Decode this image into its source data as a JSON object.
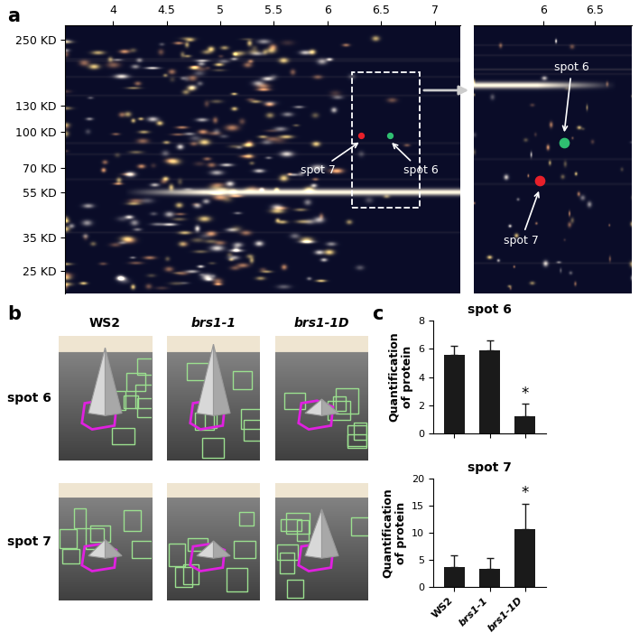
{
  "figure": {
    "panel_labels": [
      "a",
      "b",
      "c"
    ],
    "gel": {
      "ph_ticks": [
        4,
        4.5,
        5,
        5.5,
        6,
        6.5,
        7
      ],
      "ph_range": [
        3.55,
        7.24
      ],
      "mw_ticks": [
        {
          "value": 250,
          "label": "250 KD"
        },
        {
          "value": 130,
          "label": "130 KD"
        },
        {
          "value": 100,
          "label": "100 KD"
        },
        {
          "value": 70,
          "label": "70 KD"
        },
        {
          "value": 55,
          "label": "55 KD"
        },
        {
          "value": 35,
          "label": "35 KD"
        },
        {
          "value": 25,
          "label": "25 KD"
        }
      ],
      "mw_range": [
        20,
        290
      ],
      "zoom_ph_ticks": [
        6,
        6.5
      ],
      "zoom_ph_range": [
        5.32,
        6.86
      ],
      "spots": [
        {
          "label": "spot 7",
          "color": "#e8202a"
        },
        {
          "label": "spot 6",
          "color": "#2fbf71"
        }
      ]
    },
    "surface": {
      "genotypes": [
        "WS2",
        "brs1-1",
        "brs1-1D"
      ],
      "rows": [
        "spot 6",
        "spot 7"
      ]
    }
  },
  "chart_data": [
    {
      "type": "bar",
      "title": "spot 6",
      "ylabel": "Quantification\nof protein",
      "categories": [
        "WS2",
        "brs1-1",
        "brs1-1D"
      ],
      "values": [
        5.6,
        5.9,
        1.2
      ],
      "errors": [
        0.6,
        0.7,
        0.9
      ],
      "color": "#1a1a1a",
      "ylim": [
        0,
        8
      ],
      "yticks": [
        0,
        2,
        4,
        6,
        8
      ],
      "tick_labels": "y",
      "annotations": [
        {
          "category": "brs1-1D",
          "text": "*"
        }
      ]
    },
    {
      "type": "bar",
      "title": "spot 7",
      "ylabel": "Quantification\nof protein",
      "categories": [
        "WS2",
        "brs1-1",
        "brs1-1D"
      ],
      "values": [
        3.7,
        3.4,
        10.6
      ],
      "errors": [
        2.2,
        1.9,
        4.8
      ],
      "color": "#1a1a1a",
      "ylim": [
        0,
        20
      ],
      "yticks": [
        0,
        5,
        10,
        15,
        20
      ],
      "annotations": [
        {
          "category": "brs1-1D",
          "text": "*"
        }
      ]
    }
  ]
}
